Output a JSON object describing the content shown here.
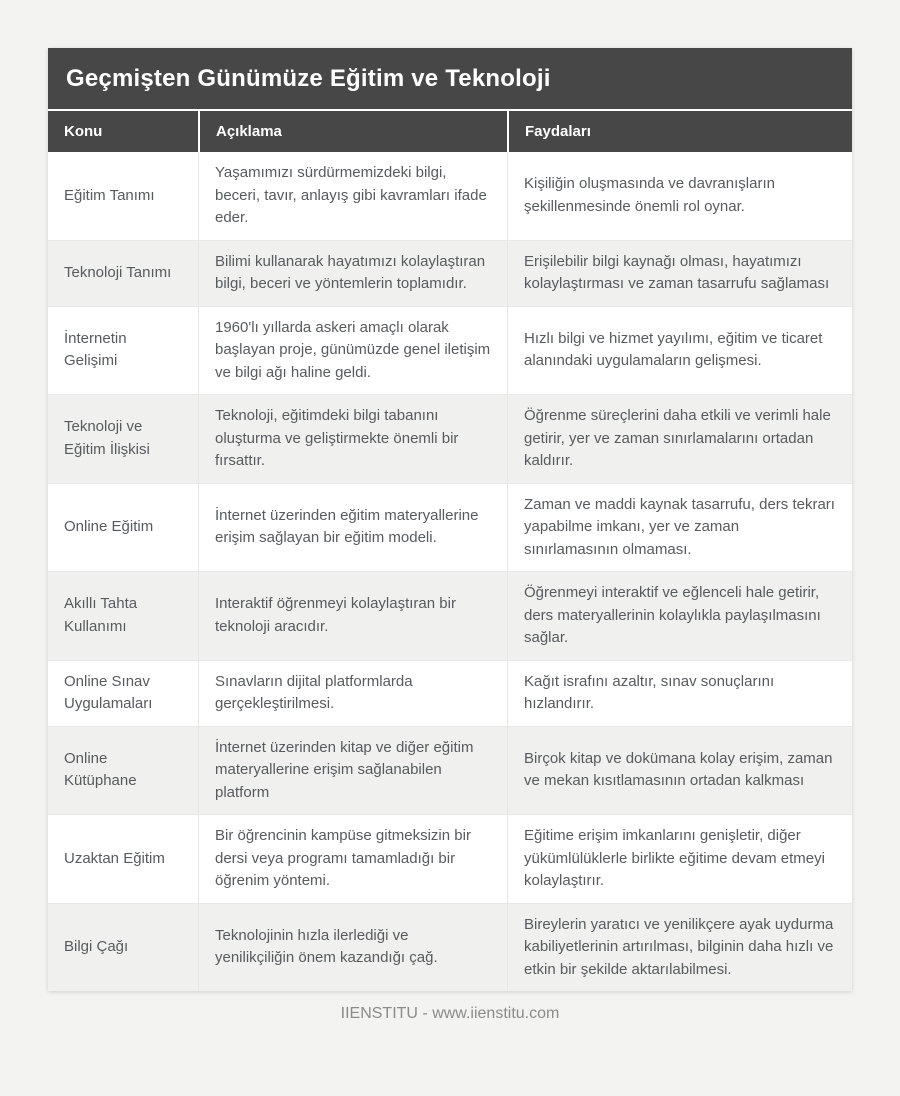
{
  "page": {
    "title": "Geçmişten Günümüze Eğitim ve Teknoloji",
    "footer_text": "IIENSTITU - www.iienstitu.com"
  },
  "colors": {
    "header_band": "#474747",
    "page_background": "#f3f3f1",
    "card_background": "#ffffff",
    "alt_row_background": "#f0f0ef",
    "body_text": "#565b5e",
    "footer_text": "#8b8b89"
  },
  "table": {
    "columns": [
      "Konu",
      "Açıklama",
      "Faydaları"
    ],
    "rows": [
      {
        "konu": "Eğitim Tanımı",
        "aciklama": "Yaşamımızı sürdürmemizdeki bilgi, beceri, tavır, anlayış gibi kavramları ifade eder.",
        "faydalari": "Kişiliğin oluşmasında ve davranışların şekillenmesinde önemli rol oynar."
      },
      {
        "konu": "Teknoloji Tanımı",
        "aciklama": "Bilimi kullanarak hayatımızı kolaylaştıran bilgi, beceri ve yöntemlerin toplamıdır.",
        "faydalari": "Erişilebilir bilgi kaynağı olması, hayatımızı kolaylaştırması ve zaman tasarrufu sağlaması"
      },
      {
        "konu": "İnternetin Gelişimi",
        "aciklama": "1960'lı yıllarda askeri amaçlı olarak başlayan proje, günümüzde genel iletişim ve bilgi ağı haline geldi.",
        "faydalari": "Hızlı bilgi ve hizmet yayılımı, eğitim ve ticaret alanındaki uygulamaların gelişmesi."
      },
      {
        "konu": "Teknoloji ve Eğitim İlişkisi",
        "aciklama": "Teknoloji, eğitimdeki bilgi tabanını oluşturma ve geliştirmekte önemli bir fırsattır.",
        "faydalari": "Öğrenme süreçlerini daha etkili ve verimli hale getirir, yer ve zaman sınırlamalarını ortadan kaldırır."
      },
      {
        "konu": "Online Eğitim",
        "aciklama": "İnternet üzerinden eğitim materyallerine erişim sağlayan bir eğitim modeli.",
        "faydalari": "Zaman ve maddi kaynak tasarrufu, ders tekrarı yapabilme imkanı, yer ve zaman sınırlamasının olmaması."
      },
      {
        "konu": "Akıllı Tahta Kullanımı",
        "aciklama": "Interaktif öğrenmeyi kolaylaştıran bir teknoloji aracıdır.",
        "faydalari": "Öğrenmeyi interaktif ve eğlenceli hale getirir, ders materyallerinin kolaylıkla paylaşılmasını sağlar."
      },
      {
        "konu": "Online Sınav Uygulamaları",
        "aciklama": "Sınavların dijital platformlarda gerçekleştirilmesi.",
        "faydalari": "Kağıt israfını azaltır, sınav sonuçlarını hızlandırır."
      },
      {
        "konu": "Online Kütüphane",
        "aciklama": "İnternet üzerinden kitap ve diğer eğitim materyallerine erişim sağlanabilen platform",
        "faydalari": "Birçok kitap ve dokümana kolay erişim, zaman ve mekan kısıtlamasının ortadan kalkması"
      },
      {
        "konu": "Uzaktan Eğitim",
        "aciklama": "Bir öğrencinin kampüse gitmeksizin bir dersi veya programı tamamladığı bir öğrenim yöntemi.",
        "faydalari": "Eğitime erişim imkanlarını genişletir, diğer yükümlülüklerle birlikte eğitime devam etmeyi kolaylaştırır."
      },
      {
        "konu": "Bilgi Çağı",
        "aciklama": "Teknolojinin hızla ilerlediği ve yenilikçiliğin önem kazandığı çağ.",
        "faydalari": "Bireylerin yaratıcı ve yenilikçere ayak uydurma kabiliyetlerinin artırılması, bilginin daha hızlı ve etkin bir şekilde aktarılabilmesi."
      }
    ]
  }
}
